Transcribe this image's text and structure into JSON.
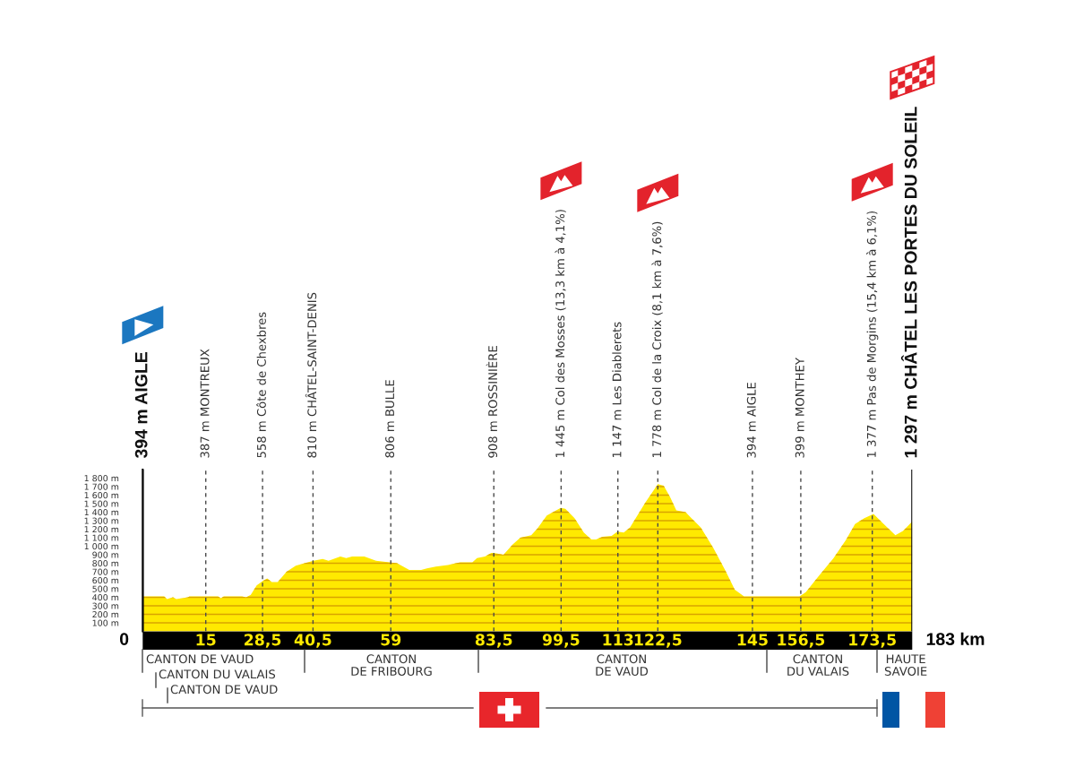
{
  "chart_data": {
    "type": "area",
    "color": "#ffe900",
    "x": [
      0,
      5.1,
      5.8,
      7.2,
      8.0,
      10.8,
      11.1,
      17.9,
      18.6,
      19.3,
      23.6,
      24.6,
      25.7,
      27.1,
      28.5,
      29.6,
      30.7,
      32.1,
      34.2,
      36.4,
      38.5,
      40.6,
      42.8,
      44.2,
      47.0,
      48.4,
      49.8,
      52.7,
      55.5,
      58.7,
      60.5,
      63.4,
      66.2,
      67.6,
      69.7,
      72.6,
      75.5,
      78.4,
      79.5,
      81.4,
      82.9,
      83.5,
      85.8,
      88.0,
      89.8,
      92.4,
      93.9,
      96.1,
      99.4,
      100.5,
      102.7,
      104.9,
      106.7,
      107.8,
      109.3,
      111.5,
      112.9,
      114.4,
      115.9,
      119.5,
      122.5,
      123.9,
      125.4,
      126.9,
      129.1,
      130.5,
      132.7,
      135.7,
      138.6,
      140.8,
      143.0,
      156.2,
      157.7,
      160.6,
      164.3,
      167.2,
      169.4,
      171.6,
      173.8,
      176.0,
      179.0,
      180.8,
      183
    ],
    "values": [
      410,
      410,
      380,
      400,
      380,
      400,
      410,
      410,
      390,
      410,
      410,
      400,
      430,
      540,
      590,
      620,
      580,
      580,
      700,
      770,
      800,
      830,
      850,
      830,
      880,
      860,
      880,
      880,
      830,
      810,
      800,
      720,
      720,
      740,
      760,
      780,
      810,
      810,
      860,
      880,
      920,
      920,
      900,
      1020,
      1100,
      1130,
      1210,
      1360,
      1450,
      1440,
      1330,
      1160,
      1080,
      1080,
      1110,
      1120,
      1170,
      1160,
      1220,
      1510,
      1730,
      1710,
      1580,
      1420,
      1400,
      1330,
      1220,
      980,
      710,
      490,
      410,
      410,
      460,
      640,
      860,
      1070,
      1260,
      1330,
      1380,
      1270,
      1130,
      1180,
      1290
    ],
    "xlim": [
      0,
      183
    ],
    "ylim": [
      0,
      1900
    ],
    "xticks": [
      15,
      {
        "value": 28.5,
        "label": "28,5"
      },
      {
        "value": 40.5,
        "label": "40,5"
      },
      59,
      {
        "value": 83.5,
        "label": "83,5"
      },
      {
        "value": 99.5,
        "label": "99,5"
      },
      113,
      {
        "value": 122.5,
        "label": "122,5"
      },
      145,
      {
        "value": 156.5,
        "label": "156,5"
      },
      {
        "value": 173.5,
        "label": "173,5"
      }
    ],
    "yticks": [
      {
        "value": 100,
        "label": "100 m"
      },
      {
        "value": 200,
        "label": "200 m"
      },
      {
        "value": 300,
        "label": "300 m"
      },
      {
        "value": 400,
        "label": "400 m"
      },
      {
        "value": 500,
        "label": "500 m"
      },
      {
        "value": 600,
        "label": "600 m"
      },
      {
        "value": 700,
        "label": "700 m"
      },
      {
        "value": 800,
        "label": "800 m"
      },
      {
        "value": 900,
        "label": "900 m"
      },
      {
        "value": 1000,
        "label": "1 000 m"
      },
      {
        "value": 1100,
        "label": "1 100 m"
      },
      {
        "value": 1200,
        "label": "1 200 m"
      },
      {
        "value": 1300,
        "label": "1 300 m"
      },
      {
        "value": 1400,
        "label": "1 400 m"
      },
      {
        "value": 1500,
        "label": "1 500 m"
      },
      {
        "value": 1600,
        "label": "1 600 m"
      },
      {
        "value": 1700,
        "label": "1 700 m"
      },
      {
        "value": 1800,
        "label": "1 800 m"
      }
    ],
    "grid": "y",
    "ref_lines": [
      {
        "axis": "x",
        "value": 0,
        "label": "394 m AIGLE",
        "line_style": "solid"
      },
      {
        "axis": "x",
        "value": 15,
        "label": "387 m MONTREUX",
        "line_style": "dashed"
      },
      {
        "axis": "x",
        "value": 28.5,
        "label": "558 m Côte de Chexbres",
        "line_style": "dashed"
      },
      {
        "axis": "x",
        "value": 40.5,
        "label": "810 m CHÂTEL-SAINT-DENIS",
        "line_style": "dashed"
      },
      {
        "axis": "x",
        "value": 59,
        "label": "806 m BULLE",
        "line_style": "dashed"
      },
      {
        "axis": "x",
        "value": 83.5,
        "label": "908 m ROSSINIÈRE",
        "line_style": "dashed"
      },
      {
        "axis": "x",
        "value": 99.5,
        "label": "1 445 m Col des Mosses (13,3 km à 4,1%)",
        "line_style": "dashed"
      },
      {
        "axis": "x",
        "value": 113,
        "label": "1 147 m Les Diablerets",
        "line_style": "dashed"
      },
      {
        "axis": "x",
        "value": 122.5,
        "label": "1 778 m Col de la Croix (8,1 km à 7,6%)",
        "line_style": "dashed"
      },
      {
        "axis": "x",
        "value": 145,
        "label": "394 m AIGLE",
        "line_style": "dashed"
      },
      {
        "axis": "x",
        "value": 156.5,
        "label": "399 m MONTHEY",
        "line_style": "dashed"
      },
      {
        "axis": "x",
        "value": 173.5,
        "label": "1 377 m Pas de Morgins (15,4 km à 6,1%)",
        "line_style": "dashed"
      },
      {
        "axis": "x",
        "value": 183,
        "label": "1 297 m CHÂTEL LES PORTES DU SOLEIL",
        "line_style": "solid"
      }
    ],
    "annotations": [
      {
        "text": "0",
        "x": 0,
        "y": 0
      },
      {
        "text": "183 km",
        "x": 183,
        "y": 0
      },
      "CANTON DE VAUD",
      "CANTON DU VALAIS",
      "CANTON DE VAUD",
      "CANTON\nDE FRIBOURG",
      "CANTON\nDE VAUD",
      "CANTON\nDU VALAIS",
      "HAUTE\nSAVOIE"
    ]
  }
}
